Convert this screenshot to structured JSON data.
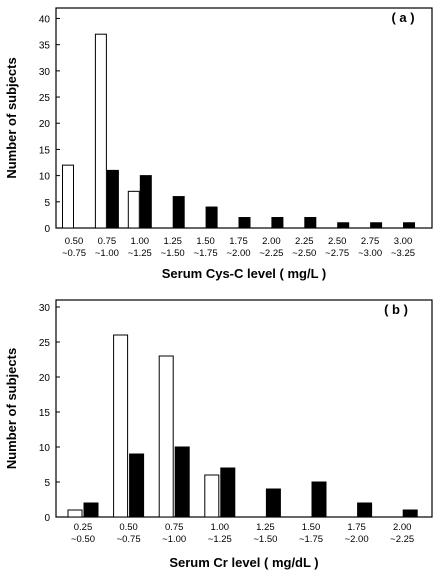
{
  "chart_data": [
    {
      "type": "bar",
      "panel_label": "( a )",
      "xlabel": "Serum Cys-C level ( mg/L )",
      "ylabel": "Number of subjects",
      "ylim": [
        0,
        42
      ],
      "yticks": [
        0,
        5,
        10,
        15,
        20,
        25,
        30,
        35,
        40
      ],
      "categories": [
        [
          "0.50",
          "~0.75"
        ],
        [
          "0.75",
          "~1.00"
        ],
        [
          "1.00",
          "~1.25"
        ],
        [
          "1.25",
          "~1.50"
        ],
        [
          "1.50",
          "~1.75"
        ],
        [
          "1.75",
          "~2.00"
        ],
        [
          "2.00",
          "~2.25"
        ],
        [
          "2.25",
          "~2.50"
        ],
        [
          "2.50",
          "~2.75"
        ],
        [
          "2.75",
          "~3.00"
        ],
        [
          "3.00",
          "~3.25"
        ]
      ],
      "series": [
        {
          "style": "open",
          "color": "#ffffff",
          "values": [
            12,
            37,
            7,
            0,
            0,
            0,
            0,
            0,
            0,
            0,
            0
          ]
        },
        {
          "style": "filled",
          "color": "#000000",
          "values": [
            0,
            11,
            10,
            6,
            4,
            2,
            2,
            2,
            1,
            1,
            1
          ]
        }
      ],
      "grid": false,
      "legend": "none"
    },
    {
      "type": "bar",
      "panel_label": "( b )",
      "xlabel": "Serum Cr level ( mg/dL )",
      "ylabel": "Number of subjects",
      "ylim": [
        0,
        31
      ],
      "yticks": [
        0,
        5,
        10,
        15,
        20,
        25,
        30
      ],
      "categories": [
        [
          "0.25",
          "~0.50"
        ],
        [
          "0.50",
          "~0.75"
        ],
        [
          "0.75",
          "~1.00"
        ],
        [
          "1.00",
          "~1.25"
        ],
        [
          "1.25",
          "~1.50"
        ],
        [
          "1.50",
          "~1.75"
        ],
        [
          "1.75",
          "~2.00"
        ],
        [
          "2.00",
          "~2.25"
        ]
      ],
      "series": [
        {
          "style": "open",
          "color": "#ffffff",
          "values": [
            1,
            26,
            23,
            6,
            0,
            0,
            0,
            0
          ]
        },
        {
          "style": "filled",
          "color": "#000000",
          "values": [
            2,
            9,
            10,
            7,
            4,
            5,
            2,
            1
          ]
        }
      ],
      "grid": false,
      "legend": "none"
    }
  ]
}
